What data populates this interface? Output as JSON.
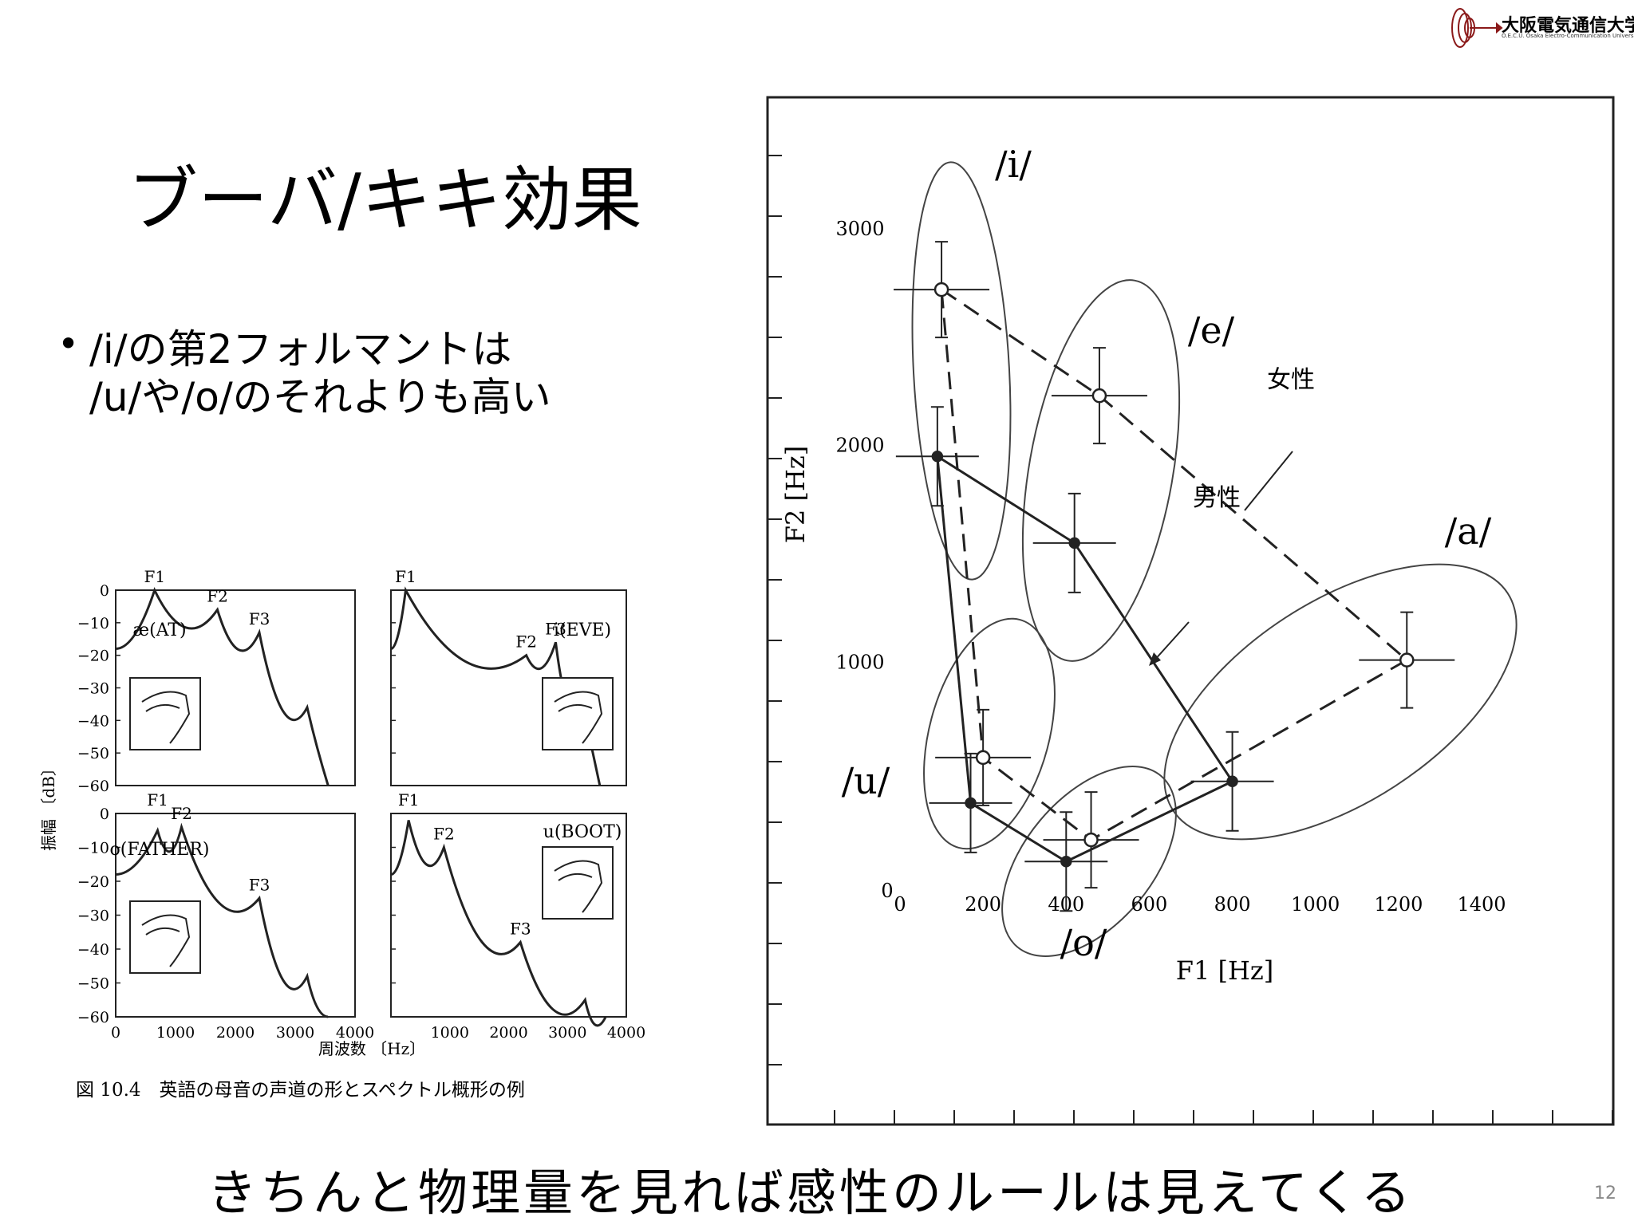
{
  "logo": {
    "name": "大阪電気通信大学",
    "subtitle": "O.E.C.U. Osaka Electro-Communication University"
  },
  "title": "ブーバ/キキ効果",
  "bullet": {
    "line1": "/i/の第2フォルマントは",
    "line2": "/u/や/o/のそれよりも高い"
  },
  "bottom_caption": "きちんと物理量を見れば感性のルールは見えてくる",
  "page_number": "12",
  "colors": {
    "text": "#000000",
    "page_number": "#888888",
    "background": "#ffffff"
  },
  "chart_data": [
    {
      "type": "scatter",
      "title": "",
      "xlabel": "F1 [Hz]",
      "ylabel": "F2 [Hz]",
      "xlim": [
        0,
        1400
      ],
      "ylim": [
        0,
        3000
      ],
      "x_ticks": [
        "0",
        "200",
        "400",
        "600",
        "800",
        "1000",
        "1200",
        "1400"
      ],
      "y_ticks": [
        "0",
        "1000",
        "2000",
        "3000"
      ],
      "vowel_labels": [
        "/i/",
        "/e/",
        "/a/",
        "/o/",
        "/u/"
      ],
      "annotations": {
        "female": "女性",
        "male": "男性"
      },
      "series": [
        {
          "name": "女性",
          "style": "dashed, open circles",
          "points": [
            {
              "vowel": "/i/",
              "x": 100,
              "y": 2720
            },
            {
              "vowel": "/e/",
              "x": 480,
              "y": 2230
            },
            {
              "vowel": "/a/",
              "x": 1220,
              "y": 1010
            },
            {
              "vowel": "/o/",
              "x": 460,
              "y": 180
            },
            {
              "vowel": "/u/",
              "x": 200,
              "y": 560
            }
          ]
        },
        {
          "name": "男性",
          "style": "solid, filled circles",
          "points": [
            {
              "vowel": "/i/",
              "x": 90,
              "y": 1950
            },
            {
              "vowel": "/e/",
              "x": 420,
              "y": 1550
            },
            {
              "vowel": "/a/",
              "x": 800,
              "y": 450
            },
            {
              "vowel": "/o/",
              "x": 400,
              "y": 80
            },
            {
              "vowel": "/u/",
              "x": 170,
              "y": 350
            }
          ]
        }
      ]
    },
    {
      "type": "line",
      "title": "図 10.4　英語の母音の声道の形とスペクトル概形の例",
      "xlabel": "周波数 〔Hz〕",
      "ylabel": "振幅 〔dB〕",
      "xlim": [
        0,
        4000
      ],
      "ylim": [
        -60,
        0
      ],
      "x_ticks": [
        "0",
        "1000",
        "2000",
        "3000",
        "4000"
      ],
      "y_ticks": [
        "0",
        "−10",
        "−20",
        "−30",
        "−40",
        "−50",
        "−60"
      ],
      "panels": [
        {
          "vowel": "æ(AT)",
          "formants": [
            {
              "label": "F1",
              "x": 650,
              "y": 0
            },
            {
              "label": "F2",
              "x": 1700,
              "y": -6
            },
            {
              "label": "F3",
              "x": 2400,
              "y": -13
            }
          ]
        },
        {
          "vowel": "i(EVE)",
          "formants": [
            {
              "label": "F1",
              "x": 250,
              "y": 0
            },
            {
              "label": "F2",
              "x": 2300,
              "y": -20
            },
            {
              "label": "F3",
              "x": 2800,
              "y": -16
            }
          ]
        },
        {
          "vowel": "o(FATHER)",
          "formants": [
            {
              "label": "F1",
              "x": 700,
              "y": 0
            },
            {
              "label": "F2",
              "x": 1100,
              "y": -4
            },
            {
              "label": "F3",
              "x": 2400,
              "y": -25
            }
          ]
        },
        {
          "vowel": "u(BOOT)",
          "formants": [
            {
              "label": "F1",
              "x": 300,
              "y": 0
            },
            {
              "label": "F2",
              "x": 900,
              "y": -10
            },
            {
              "label": "F3",
              "x": 2200,
              "y": -38
            }
          ]
        }
      ]
    }
  ]
}
